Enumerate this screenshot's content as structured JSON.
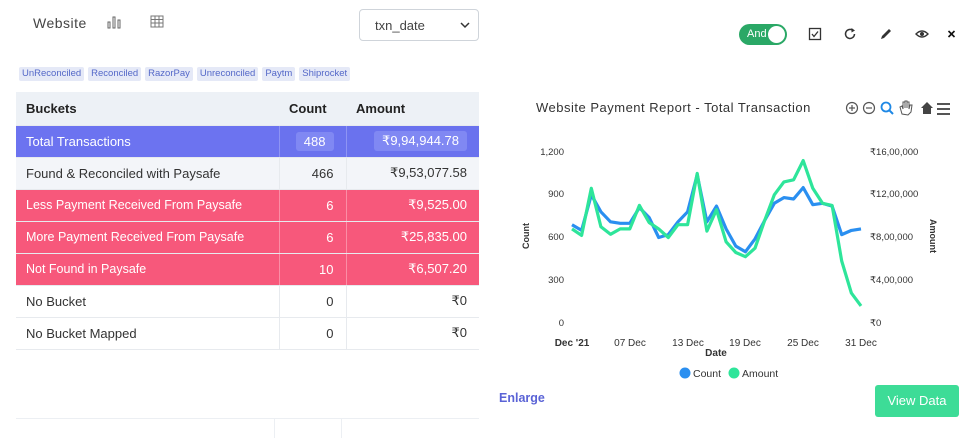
{
  "header": {
    "title": "Website",
    "select_value": "txn_date",
    "toggle_label": "And"
  },
  "tags": [
    "UnReconciled",
    "Reconciled",
    "RazorPay",
    "Unreconciled",
    "Paytm",
    "Shiprocket"
  ],
  "table": {
    "headers": [
      "Buckets",
      "Count",
      "Amount"
    ],
    "rows": [
      {
        "bucket": "Total Transactions",
        "count": "488",
        "amount": "₹9,94,944.78"
      },
      {
        "bucket": "Found & Reconciled with Paysafe",
        "count": "466",
        "amount": "₹9,53,077.58"
      },
      {
        "bucket": "Less Payment Received From Paysafe",
        "count": "6",
        "amount": "₹9,525.00"
      },
      {
        "bucket": "More Payment Received From Paysafe",
        "count": "6",
        "amount": "₹25,835.00"
      },
      {
        "bucket": "Not Found in Paysafe",
        "count": "10",
        "amount": "₹6,507.20"
      },
      {
        "bucket": "No Bucket",
        "count": "0",
        "amount": "₹0"
      },
      {
        "bucket": "No Bucket Mapped",
        "count": "0",
        "amount": "₹0"
      }
    ]
  },
  "chart_title": "Website Payment Report - Total Transaction",
  "chart_data": {
    "type": "line",
    "title": "Website Payment Report - Total Transaction",
    "xlabel": "Date",
    "ylabel": "Count",
    "y2label": "Amount",
    "x_ticks": [
      "Dec '21",
      "07 Dec",
      "13 Dec",
      "19 Dec",
      "25 Dec",
      "31 Dec"
    ],
    "y_ticks": [
      "0",
      "300",
      "600",
      "900",
      "1,200"
    ],
    "y2_ticks": [
      "₹0",
      "₹4,00,000",
      "₹8,00,000",
      "₹12,00,000",
      "₹16,00,000"
    ],
    "ylim": [
      0,
      1200
    ],
    "y2lim": [
      0,
      1600000
    ],
    "x_days": [
      1,
      2,
      3,
      4,
      5,
      6,
      7,
      8,
      9,
      10,
      11,
      12,
      13,
      14,
      15,
      16,
      17,
      18,
      19,
      20,
      21,
      22,
      23,
      24,
      25,
      26,
      27,
      28,
      29,
      30,
      31
    ],
    "series": [
      {
        "name": "Count",
        "color": "#2a8ff0",
        "axis": "left",
        "values": [
          690,
          650,
          900,
          780,
          710,
          700,
          700,
          810,
          740,
          600,
          620,
          710,
          780,
          1040,
          710,
          820,
          660,
          540,
          500,
          590,
          720,
          840,
          880,
          870,
          950,
          830,
          840,
          820,
          620,
          650,
          660
        ]
      },
      {
        "name": "Amount",
        "color": "#2ee59a",
        "axis": "right",
        "values": [
          880000,
          820000,
          1260000,
          900000,
          830000,
          880000,
          880000,
          1100000,
          940000,
          880000,
          800000,
          920000,
          920000,
          1400000,
          860000,
          1060000,
          760000,
          660000,
          620000,
          700000,
          960000,
          1200000,
          1320000,
          1340000,
          1520000,
          1260000,
          1120000,
          1100000,
          580000,
          280000,
          160000
        ]
      }
    ],
    "legend": "bottom"
  },
  "enlarge_label": "Enlarge",
  "view_button_label": "View Data"
}
